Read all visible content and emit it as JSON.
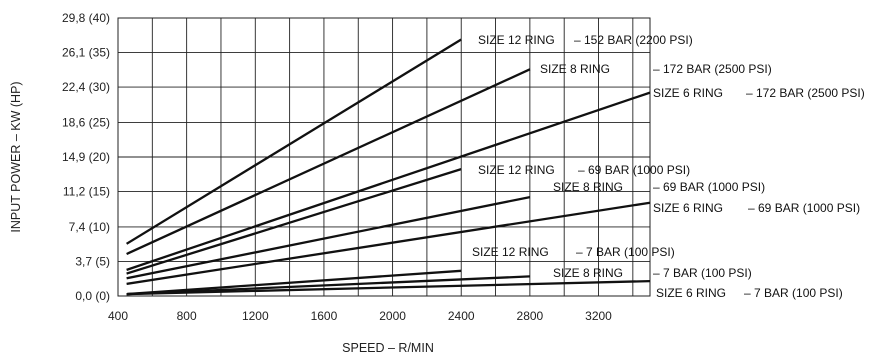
{
  "chart_data": {
    "type": "line",
    "title": "",
    "xlabel": "SPEED – R/MIN",
    "ylabel": "INPUT POWER   – KW (HP)",
    "xlim": [
      400,
      3500
    ],
    "ylim": [
      0,
      29.8
    ],
    "x_ticks": [
      400,
      800,
      1200,
      1600,
      2000,
      2400,
      2800,
      3200
    ],
    "x_tick_labels": [
      "400",
      "800",
      "1200",
      "1600",
      "2000",
      "2400",
      "2800",
      "3200"
    ],
    "y_ticks": [
      0,
      3.7,
      7.4,
      11.2,
      14.9,
      18.6,
      22.4,
      26.1,
      29.8
    ],
    "y_tick_labels": [
      "0,0 (0)",
      "3,7 (5)",
      "7,4 (10)",
      "11,2 (15)",
      "14,9 (20)",
      "18,6 (25)",
      "22,4 (30)",
      "26,1 (35)",
      "29,8 (40)"
    ],
    "grid": true,
    "series": [
      {
        "name": "SIZE 12 RING   – 152 BAR (2200 PSI)",
        "label_left": "SIZE 12 RING",
        "label_right": "– 152 BAR (2200 PSI)",
        "x": [
          450,
          2400
        ],
        "y": [
          5.6,
          27.5
        ]
      },
      {
        "name": "SIZE 8 RING   – 172 BAR (2500 PSI)",
        "label_left": "SIZE 8 RING",
        "label_right": "– 172 BAR (2500 PSI)",
        "x": [
          450,
          2800
        ],
        "y": [
          4.5,
          24.3
        ]
      },
      {
        "name": "SIZE 6 RING   – 172 BAR (2500 PSI)",
        "label_left": "SIZE 6 RING",
        "label_right": "– 172 BAR (2500 PSI)",
        "x": [
          450,
          3500
        ],
        "y": [
          2.8,
          21.8
        ]
      },
      {
        "name": "SIZE 12 RING   – 69 BAR (1000 PSI)",
        "label_left": "SIZE 12 RING",
        "label_right": "– 69 BAR (1000 PSI)",
        "x": [
          450,
          2400
        ],
        "y": [
          2.4,
          13.6
        ]
      },
      {
        "name": "SIZE 8 RING   – 69 BAR (1000 PSI)",
        "label_left": "SIZE 8 RING",
        "label_right": "– 69 BAR (1000 PSI)",
        "x": [
          450,
          2800
        ],
        "y": [
          1.9,
          10.6
        ]
      },
      {
        "name": "SIZE 6 RING   – 69 BAR (1000 PSI)",
        "label_left": "SIZE 6 RING",
        "label_right": "– 69 BAR (1000 PSI)",
        "x": [
          450,
          3500
        ],
        "y": [
          1.3,
          10.0
        ]
      },
      {
        "name": "SIZE 12 RING   – 7 BAR (100 PSI)",
        "label_left": "SIZE 12 RING",
        "label_right": "– 7 BAR (100 PSI)",
        "x": [
          450,
          2400
        ],
        "y": [
          0.2,
          2.7
        ]
      },
      {
        "name": "SIZE 8 RING   – 7 BAR (100 PSI)",
        "label_left": "SIZE 8 RING",
        "label_right": "– 7 BAR (100 PSI)",
        "x": [
          450,
          2800
        ],
        "y": [
          0.2,
          2.1
        ]
      },
      {
        "name": "SIZE 6 RING   – 7 BAR (100 PSI)",
        "label_left": "SIZE 6 RING",
        "label_right": "– 7 BAR (100 PSI)",
        "x": [
          450,
          3500
        ],
        "y": [
          0.2,
          1.6
        ]
      }
    ]
  }
}
